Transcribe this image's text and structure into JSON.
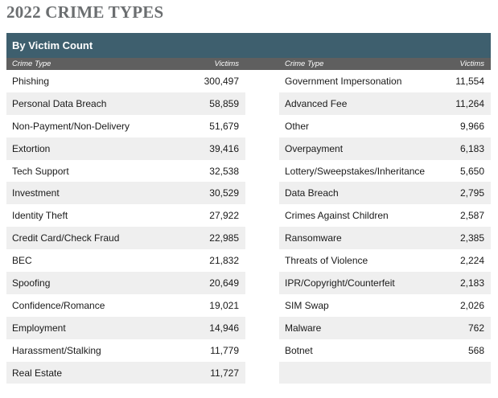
{
  "title": "2022 CRIME TYPES",
  "panel_title": "By Victim Count",
  "headers": {
    "type": "Crime Type",
    "victims": "Victims"
  },
  "left": [
    {
      "type": "Phishing",
      "victims": "300,497"
    },
    {
      "type": "Personal Data Breach",
      "victims": "58,859"
    },
    {
      "type": "Non-Payment/Non-Delivery",
      "victims": "51,679"
    },
    {
      "type": "Extortion",
      "victims": "39,416"
    },
    {
      "type": "Tech Support",
      "victims": "32,538"
    },
    {
      "type": "Investment",
      "victims": "30,529"
    },
    {
      "type": "Identity Theft",
      "victims": "27,922"
    },
    {
      "type": "Credit Card/Check Fraud",
      "victims": "22,985"
    },
    {
      "type": "BEC",
      "victims": "21,832"
    },
    {
      "type": "Spoofing",
      "victims": "20,649"
    },
    {
      "type": "Confidence/Romance",
      "victims": "19,021"
    },
    {
      "type": "Employment",
      "victims": "14,946"
    },
    {
      "type": "Harassment/Stalking",
      "victims": "11,779"
    },
    {
      "type": "Real Estate",
      "victims": "11,727"
    }
  ],
  "right": [
    {
      "type": "Government Impersonation",
      "victims": "11,554"
    },
    {
      "type": "Advanced Fee",
      "victims": "11,264"
    },
    {
      "type": "Other",
      "victims": "9,966"
    },
    {
      "type": "Overpayment",
      "victims": "6,183"
    },
    {
      "type": "Lottery/Sweepstakes/Inheritance",
      "victims": "5,650"
    },
    {
      "type": "Data Breach",
      "victims": "2,795"
    },
    {
      "type": "Crimes Against Children",
      "victims": "2,587"
    },
    {
      "type": "Ransomware",
      "victims": "2,385"
    },
    {
      "type": "Threats of Violence",
      "victims": "2,224"
    },
    {
      "type": "IPR/Copyright/Counterfeit",
      "victims": "2,183"
    },
    {
      "type": "SIM Swap",
      "victims": "2,026"
    },
    {
      "type": "Malware",
      "victims": "762"
    },
    {
      "type": "Botnet",
      "victims": "568"
    },
    {
      "type": "",
      "victims": ""
    }
  ],
  "colors": {
    "title": "#6b6e70",
    "panel_header": "#3e5f6e",
    "column_header": "#5f5f5f",
    "row_alt": "#efefef"
  }
}
